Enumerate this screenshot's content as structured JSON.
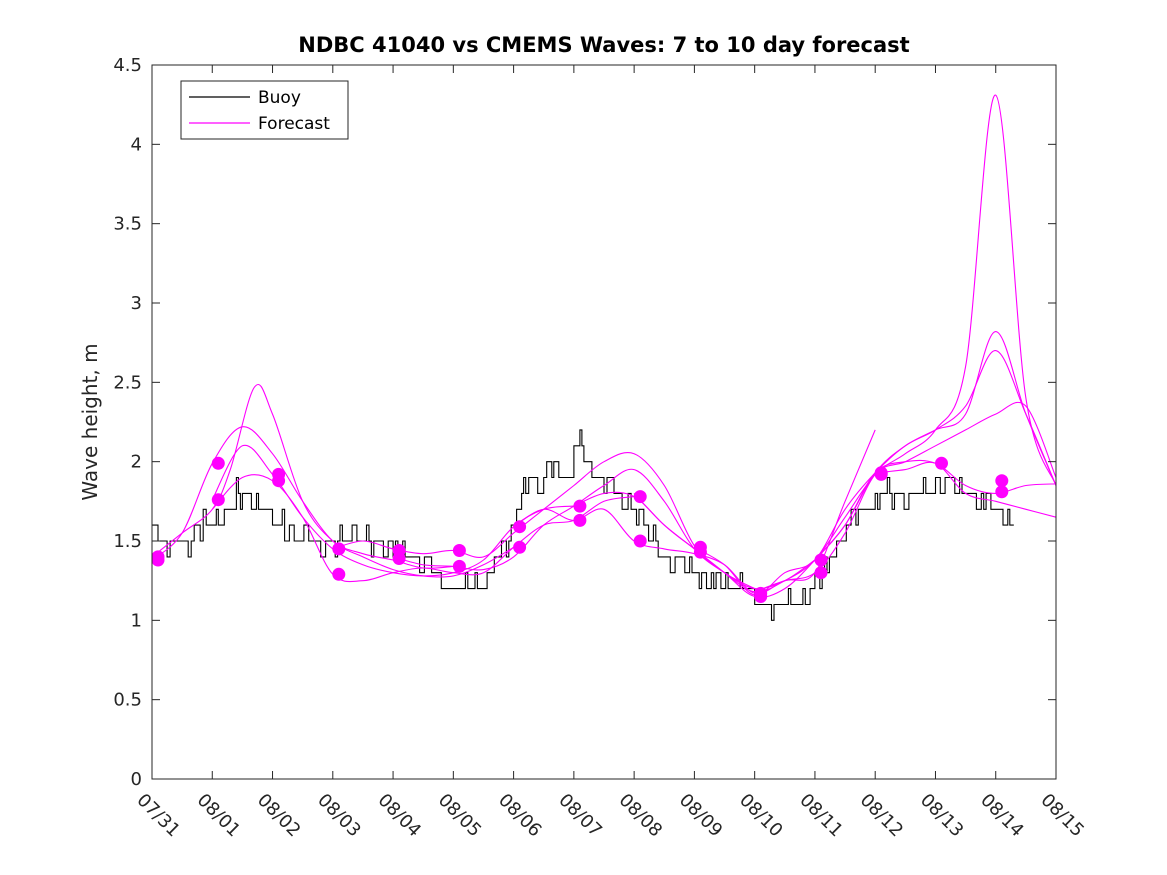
{
  "chart_data": {
    "type": "line",
    "title": "NDBC 41040 vs CMEMS Waves: 7 to 10 day forecast",
    "xlabel": "",
    "ylabel": "Wave height, m",
    "x_tick_labels": [
      "07/31",
      "08/01",
      "08/02",
      "08/03",
      "08/04",
      "08/05",
      "08/06",
      "08/07",
      "08/08",
      "08/09",
      "08/10",
      "08/11",
      "08/12",
      "08/13",
      "08/14",
      "08/15"
    ],
    "xlim": [
      0,
      15
    ],
    "ylim": [
      0,
      4.5
    ],
    "y_ticks": [
      0,
      0.5,
      1,
      1.5,
      2,
      2.5,
      3,
      3.5,
      4,
      4.5
    ],
    "y_tick_labels": [
      "0",
      "0.5",
      "1",
      "1.5",
      "2",
      "2.5",
      "3",
      "3.5",
      "4",
      "4.5"
    ],
    "grid": false,
    "legend_position": "top-left",
    "legend": [
      {
        "label": "Buoy",
        "color": "#000000"
      },
      {
        "label": "Forecast",
        "color": "#ff00ff"
      }
    ],
    "colors": {
      "buoy": "#000000",
      "forecast": "#ff00ff"
    },
    "series": [
      {
        "name": "Buoy",
        "color": "#000000",
        "step": 0.04,
        "x": [
          0,
          0.05,
          0.1,
          0.15,
          0.2,
          0.3,
          0.4,
          0.5,
          0.6,
          0.7,
          0.8,
          0.9,
          1.0,
          1.1,
          1.2,
          1.3,
          1.4,
          1.5,
          1.6,
          1.7,
          1.8,
          1.9,
          2.0,
          2.2,
          2.4,
          2.6,
          2.8,
          3.0,
          3.2,
          3.4,
          3.6,
          3.8,
          4.0,
          4.2,
          4.4,
          4.6,
          4.8,
          5.0,
          5.2,
          5.4,
          5.6,
          5.8,
          6.0,
          6.1,
          6.2,
          6.3,
          6.4,
          6.5,
          6.6,
          6.7,
          6.8,
          6.9,
          7.0,
          7.1,
          7.2,
          7.3,
          7.4,
          7.5,
          7.6,
          7.7,
          7.8,
          7.9,
          8.0,
          8.2,
          8.4,
          8.6,
          8.8,
          9.0,
          9.2,
          9.4,
          9.6,
          9.8,
          10.0,
          10.2,
          10.4,
          10.6,
          10.8,
          11.0,
          11.2,
          11.4,
          11.6,
          11.8,
          12.0,
          12.2,
          12.4,
          12.6,
          12.8,
          13.0,
          13.2,
          13.4,
          13.6,
          13.8,
          14.0,
          14.2,
          14.3
        ],
        "values": [
          1.55,
          1.6,
          1.5,
          1.55,
          1.45,
          1.45,
          1.5,
          1.45,
          1.5,
          1.55,
          1.6,
          1.65,
          1.65,
          1.6,
          1.65,
          1.75,
          1.8,
          1.75,
          1.8,
          1.7,
          1.75,
          1.65,
          1.65,
          1.6,
          1.5,
          1.55,
          1.45,
          1.5,
          1.5,
          1.55,
          1.5,
          1.45,
          1.45,
          1.45,
          1.4,
          1.35,
          1.25,
          1.2,
          1.25,
          1.2,
          1.3,
          1.45,
          1.6,
          1.75,
          1.85,
          1.9,
          1.85,
          1.9,
          2.0,
          1.95,
          1.85,
          1.9,
          2.05,
          2.15,
          2.0,
          1.95,
          1.9,
          1.85,
          1.9,
          1.8,
          1.75,
          1.75,
          1.7,
          1.6,
          1.45,
          1.35,
          1.35,
          1.3,
          1.25,
          1.25,
          1.2,
          1.25,
          1.15,
          1.1,
          1.1,
          1.15,
          1.15,
          1.25,
          1.35,
          1.5,
          1.65,
          1.7,
          1.75,
          1.8,
          1.75,
          1.8,
          1.85,
          1.85,
          1.9,
          1.85,
          1.8,
          1.75,
          1.7,
          1.6,
          1.6
        ]
      },
      {
        "name": "Forecast",
        "color": "#ff00ff",
        "x": [
          0,
          0.5,
          1.0,
          1.3,
          1.7,
          2.0,
          2.5,
          3.0,
          3.5,
          4.0,
          4.5,
          5.0
        ],
        "values": [
          1.4,
          1.55,
          1.7,
          1.95,
          2.47,
          2.3,
          1.75,
          1.5,
          1.42,
          1.38,
          1.33,
          1.34
        ]
      },
      {
        "name": "Forecast",
        "color": "#ff00ff",
        "x": [
          0,
          0.5,
          1.0,
          1.5,
          2.0,
          2.5,
          3.0,
          3.5,
          4.0,
          4.5,
          5.0,
          5.5,
          6.0
        ],
        "values": [
          1.38,
          1.55,
          1.99,
          2.22,
          2.05,
          1.75,
          1.5,
          1.4,
          1.32,
          1.28,
          1.28,
          1.35,
          1.46
        ]
      },
      {
        "name": "Forecast",
        "color": "#ff00ff",
        "x": [
          1.0,
          1.5,
          2.0,
          2.5,
          3.0,
          3.5,
          4.0,
          4.5,
          5.0,
          5.5,
          6.0,
          6.5,
          7.0
        ],
        "values": [
          1.76,
          2.1,
          1.92,
          1.65,
          1.45,
          1.35,
          1.3,
          1.28,
          1.3,
          1.38,
          1.59,
          1.7,
          1.72
        ]
      },
      {
        "name": "Forecast",
        "color": "#ff00ff",
        "x": [
          1.0,
          1.5,
          2.0,
          2.5,
          3.0,
          3.5,
          4.0,
          4.5,
          5.0,
          5.5,
          6.0,
          6.5,
          7.0,
          7.5,
          8.0
        ],
        "values": [
          1.7,
          1.9,
          1.88,
          1.65,
          1.29,
          1.25,
          1.3,
          1.33,
          1.3,
          1.3,
          1.46,
          1.6,
          1.63,
          1.75,
          1.78
        ]
      },
      {
        "name": "Forecast",
        "color": "#ff00ff",
        "x": [
          3.0,
          3.5,
          4.0,
          4.5,
          5.0,
          5.5,
          6.0,
          6.5,
          7.0,
          7.5,
          8.0,
          8.5,
          9.0,
          9.5,
          10.0
        ],
        "values": [
          1.45,
          1.5,
          1.45,
          1.42,
          1.44,
          1.4,
          1.55,
          1.7,
          1.85,
          2.0,
          2.05,
          1.85,
          1.47,
          1.3,
          1.2
        ]
      },
      {
        "name": "Forecast",
        "color": "#ff00ff",
        "x": [
          4.0,
          4.5,
          5.0,
          5.5,
          6.0,
          6.5,
          7.0,
          7.5,
          8.0,
          8.5,
          9.0,
          9.5,
          10.0,
          10.5,
          11.0
        ],
        "values": [
          1.4,
          1.35,
          1.34,
          1.32,
          1.4,
          1.6,
          1.72,
          1.85,
          1.95,
          1.75,
          1.45,
          1.3,
          1.2,
          1.25,
          1.38
        ]
      },
      {
        "name": "Forecast",
        "color": "#ff00ff",
        "x": [
          6.0,
          6.5,
          7.0,
          7.5,
          8.0,
          8.5,
          9.0,
          9.5,
          10.0,
          10.5,
          11.0,
          11.5,
          12.0
        ],
        "values": [
          1.59,
          1.7,
          1.63,
          1.7,
          1.5,
          1.45,
          1.42,
          1.35,
          1.17,
          1.25,
          1.3,
          1.75,
          2.2
        ]
      },
      {
        "name": "Forecast",
        "color": "#ff00ff",
        "x": [
          7.0,
          7.5,
          8.0,
          8.5,
          9.0,
          9.5,
          10.0,
          10.5,
          11.0,
          11.5,
          12.0,
          12.5,
          13.0,
          13.5,
          14.0,
          14.5,
          15.0
        ],
        "values": [
          1.72,
          1.8,
          1.78,
          1.6,
          1.45,
          1.3,
          1.15,
          1.2,
          1.38,
          1.6,
          1.93,
          2.1,
          2.2,
          2.3,
          2.82,
          2.3,
          1.85
        ]
      },
      {
        "name": "Forecast",
        "color": "#ff00ff",
        "x": [
          8.0,
          8.5,
          9.0,
          9.5,
          10.0,
          10.5,
          11.0,
          11.5,
          12.0,
          12.5,
          13.0,
          13.5,
          14.0,
          14.5,
          15.0
        ],
        "values": [
          1.8,
          1.6,
          1.45,
          1.3,
          1.18,
          1.25,
          1.38,
          1.65,
          1.92,
          2.05,
          2.2,
          2.6,
          4.31,
          2.4,
          1.85
        ]
      },
      {
        "name": "Forecast",
        "color": "#ff00ff",
        "x": [
          9.0,
          9.5,
          10.0,
          10.5,
          11.0,
          11.5,
          12.0,
          12.5,
          13.0,
          13.5,
          14.0,
          14.5,
          15.0
        ],
        "values": [
          1.46,
          1.35,
          1.16,
          1.3,
          1.38,
          1.7,
          1.93,
          2.1,
          2.2,
          2.35,
          2.7,
          2.3,
          1.85
        ]
      },
      {
        "name": "Forecast",
        "color": "#ff00ff",
        "x": [
          10.0,
          10.5,
          11.0,
          11.5,
          12.0,
          12.5,
          13.0,
          13.5,
          14.0,
          14.5,
          15.0
        ],
        "values": [
          1.18,
          1.25,
          1.3,
          1.55,
          1.92,
          2.0,
          2.1,
          2.2,
          2.3,
          2.35,
          1.9
        ]
      },
      {
        "name": "Forecast",
        "color": "#ff00ff",
        "x": [
          11.0,
          11.5,
          12.0,
          12.5,
          13.0,
          13.5,
          14.0,
          14.5,
          15.0
        ],
        "values": [
          1.38,
          1.6,
          1.93,
          2.0,
          1.99,
          1.85,
          1.8,
          1.85,
          1.86
        ]
      },
      {
        "name": "Forecast",
        "color": "#ff00ff",
        "x": [
          12.0,
          12.5,
          13.0,
          13.5,
          14.0,
          14.5,
          15.0
        ],
        "values": [
          1.93,
          1.95,
          1.99,
          1.8,
          1.75,
          1.7,
          1.65
        ]
      }
    ],
    "markers": {
      "name": "Forecast",
      "color": "#ff00ff",
      "x": [
        0.1,
        0.1,
        1.1,
        1.1,
        2.1,
        2.1,
        3.1,
        3.1,
        4.1,
        4.1,
        5.1,
        5.1,
        6.1,
        6.1,
        7.1,
        7.1,
        8.1,
        8.1,
        9.1,
        9.1,
        10.1,
        10.1,
        11.1,
        11.1,
        12.1,
        12.1,
        13.1,
        14.1,
        14.1
      ],
      "values": [
        1.38,
        1.4,
        1.99,
        1.76,
        1.92,
        1.88,
        1.45,
        1.29,
        1.44,
        1.39,
        1.44,
        1.34,
        1.59,
        1.46,
        1.72,
        1.63,
        1.78,
        1.5,
        1.46,
        1.43,
        1.17,
        1.15,
        1.38,
        1.3,
        1.93,
        1.92,
        1.99,
        1.88,
        1.81
      ]
    }
  }
}
